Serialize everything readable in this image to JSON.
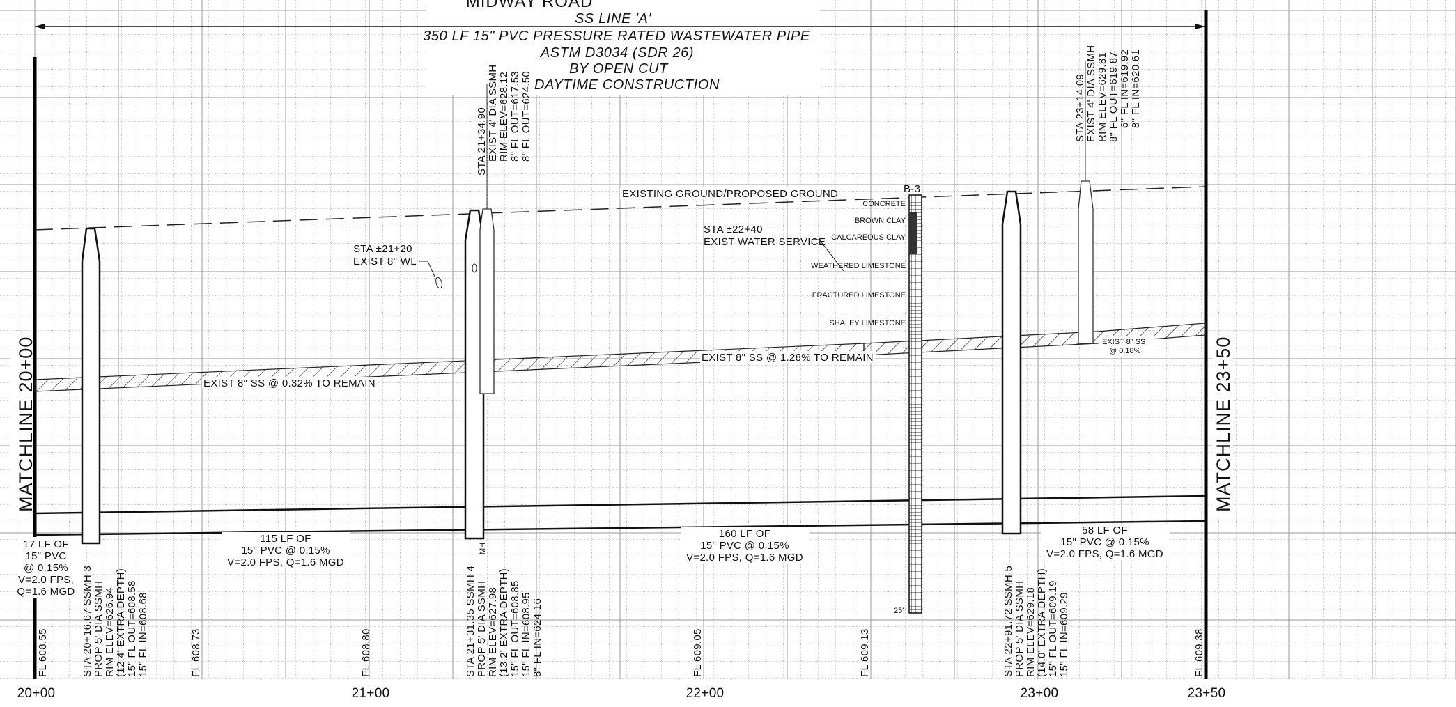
{
  "road_name": "MIDWAY ROAD",
  "title_lines": [
    "SS LINE 'A'",
    "350 LF 15\" PVC PRESSURE RATED WASTEWATER PIPE",
    "ASTM D3034 (SDR 26)",
    "BY OPEN CUT",
    "DAYTIME CONSTRUCTION"
  ],
  "matchlines": {
    "left": "MATCHLINE 20+00",
    "right": "MATCHLINE 23+50"
  },
  "stations": [
    "20+00",
    "21+00",
    "22+00",
    "23+00",
    "23+50"
  ],
  "flowlines": [
    "FL 608.55",
    "FL 608.73",
    "FL 608.80",
    "FL 609.05",
    "FL 609.13",
    "FL 609.38"
  ],
  "ground_label": "EXISTING GROUND/PROPOSED GROUND",
  "existing_sewer_labels": [
    "EXIST 8\" SS @ 0.32% TO REMAIN",
    "EXIST 8\" SS @ 1.28% TO REMAIN"
  ],
  "existing_sewer_short": [
    "EXIST 8\" SS",
    "@ 0.18%"
  ],
  "wl_callout": [
    "STA ±21+20",
    "EXIST 8\" WL"
  ],
  "water_service_callout": [
    "STA ±22+40",
    "EXIST WATER SERVICE"
  ],
  "boring": {
    "id": "B-3",
    "depth_label": "25'",
    "strata": [
      "CONCRETE",
      "BROWN CLAY",
      "CALCAREOUS CLAY",
      "WEATHERED LIMESTONE",
      "FRACTURED LIMESTONE",
      "SHALEY LIMESTONE"
    ]
  },
  "pipe_segments": [
    [
      "17 LF OF",
      "15\" PVC",
      "@ 0.15%",
      "V=2.0 FPS,",
      "Q=1.6 MGD"
    ],
    [
      "115 LF OF",
      "15\" PVC @ 0.15%",
      "V=2.0 FPS, Q=1.6 MGD"
    ],
    [
      "160 LF OF",
      "15\" PVC @ 0.15%",
      "V=2.0 FPS, Q=1.6 MGD"
    ],
    [
      "58 LF OF",
      "15\" PVC @ 0.15%",
      "V=2.0 FPS, Q=1.6 MGD"
    ]
  ],
  "proposed_manholes": [
    [
      "STA 20+16.67 SSMH 3",
      "PROP 5' DIA SSMH",
      "RIM ELEV=626.94",
      "(12.4' EXTRA DEPTH)",
      "15\" FL OUT=608.58",
      "15\" FL IN=608.68"
    ],
    [
      "STA 21+31.35 SSMH 4",
      "PROP 5' DIA SSMH",
      "RIM ELEV=627.98",
      "(13.2' EXTRA DEPTH)",
      "15\" FL OUT=608.85",
      "15\" FL IN=608.95",
      "8\" FL IN=624.16"
    ],
    [
      "STA 22+91.72 SSMH 5",
      "PROP 5' DIA SSMH",
      "RIM ELEV=629.18",
      "(14.0' EXTRA DEPTH)",
      "15\" FL OUT=609.19",
      "15\" FL IN=609.29"
    ]
  ],
  "manhole4_tag": "MH",
  "existing_manholes": [
    [
      "STA 21+34.90",
      "EXIST 4' DIA SSMH",
      "RIM ELEV=628.12",
      "8\" FL OUT=617.53",
      "8\" FL OUT=624.50"
    ],
    [
      "STA 23+14.09",
      "EXIST 4' DIA SSMH",
      "RIM ELEV=629.81",
      "8\" FL OUT=619.87",
      "6\" FL IN=619.92",
      "8\" FL IN=620.61"
    ]
  ]
}
